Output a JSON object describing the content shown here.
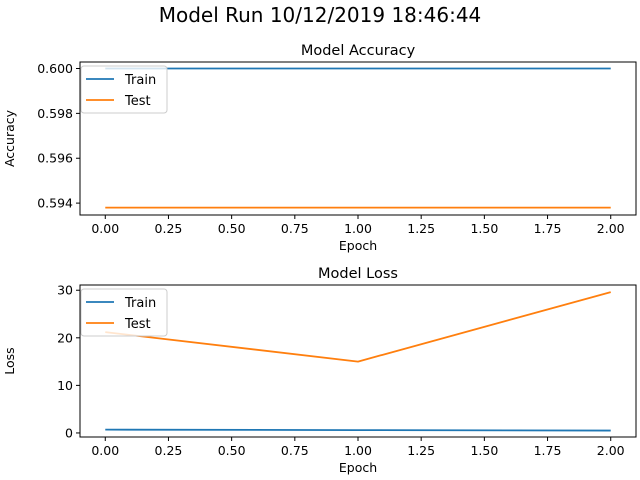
{
  "figure": {
    "suptitle": "Model Run 10/12/2019 18:46:44"
  },
  "chart_data": [
    {
      "type": "line",
      "title": "Model Accuracy",
      "xlabel": "Epoch",
      "ylabel": "Accuracy",
      "x": [
        0,
        1,
        2
      ],
      "xlim": [
        -0.1,
        2.1
      ],
      "ylim": [
        0.59347,
        0.60029
      ],
      "xticks": [
        0.0,
        0.25,
        0.5,
        0.75,
        1.0,
        1.25,
        1.5,
        1.75,
        2.0
      ],
      "xtick_labels": [
        "0.00",
        "0.25",
        "0.50",
        "0.75",
        "1.00",
        "1.25",
        "1.50",
        "1.75",
        "2.00"
      ],
      "yticks": [
        0.594,
        0.596,
        0.598,
        0.6
      ],
      "ytick_labels": [
        "0.594",
        "0.596",
        "0.598",
        "0.600"
      ],
      "legend_position": "top-left",
      "grid": false,
      "series": [
        {
          "name": "Train",
          "color": "#1f77b4",
          "values": [
            0.6,
            0.6,
            0.6
          ]
        },
        {
          "name": "Test",
          "color": "#ff7f0e",
          "values": [
            0.5938,
            0.5938,
            0.5938
          ]
        }
      ]
    },
    {
      "type": "line",
      "title": "Model Loss",
      "xlabel": "Epoch",
      "ylabel": "Loss",
      "x": [
        0,
        1,
        2
      ],
      "xlim": [
        -0.1,
        2.1
      ],
      "ylim": [
        -0.85,
        31.1
      ],
      "xticks": [
        0.0,
        0.25,
        0.5,
        0.75,
        1.0,
        1.25,
        1.5,
        1.75,
        2.0
      ],
      "xtick_labels": [
        "0.00",
        "0.25",
        "0.50",
        "0.75",
        "1.00",
        "1.25",
        "1.50",
        "1.75",
        "2.00"
      ],
      "yticks": [
        0,
        10,
        20,
        30
      ],
      "ytick_labels": [
        "0",
        "10",
        "20",
        "30"
      ],
      "legend_position": "top-left",
      "grid": false,
      "series": [
        {
          "name": "Train",
          "color": "#1f77b4",
          "values": [
            0.7,
            0.6,
            0.5
          ]
        },
        {
          "name": "Test",
          "color": "#ff7f0e",
          "values": [
            21.2,
            15.0,
            29.6
          ]
        }
      ]
    }
  ]
}
